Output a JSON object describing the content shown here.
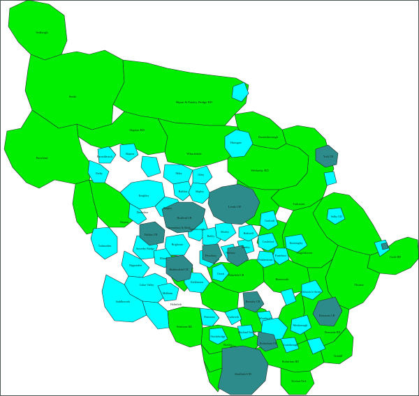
{
  "colors": {
    "green": "#00ee00",
    "cyan": "#00ffff",
    "teal": "#2e8b8b",
    "border": "#1e2a2a"
  },
  "labels": {
    "sedbergh": "Sedbergh",
    "settle": "Settle",
    "ripon_pateley": "Ripon & Pateley Bridge RD",
    "knaresborough": "Knaresborough",
    "skipton_rd": "Skipton RD",
    "bowland": "Bowland",
    "barnoldswick": "Barnoldswick",
    "earby": "Earby",
    "skipton": "Skipton",
    "harrogate": "Harrogate",
    "wharfedale": "Wharfedale",
    "wetherby_rd": "Wetherby RD",
    "tadcaster": "Tadcaster",
    "york_cb": "York CB",
    "ilkley": "Ilkley",
    "otley": "Otley",
    "keighley": "Keighley",
    "bingley": "Bingley",
    "baildon": "Baildon",
    "shipley": "Shipley",
    "leeds_cb": "Leeds CB",
    "bradford_cb": "Bradford CB",
    "queensbury": "Queensbury & Shelf",
    "denholme": "Denholme",
    "hepton": "Hepton",
    "halifax_cb": "Halifax CB",
    "todmorden": "Todmorden",
    "sowerby": "Sowerby Bridge",
    "brighouse": "Brighouse",
    "spenborough": "Spenborough",
    "batley": "Batley",
    "morley": "Morley",
    "rothwell": "Rothwell",
    "garforth": "Garforth",
    "selby_ud": "Selby UD",
    "goole_rd": "Goole RD",
    "osgoldcross": "Osgoldcross",
    "thorne": "Thorne",
    "castleford": "Castleford",
    "knottingley": "Knottingley",
    "pontefract": "Pontefract",
    "featherstone": "Featherstone",
    "wakefield_cb": "Wakefield CB",
    "dewsbury": "Dewsbury",
    "ossett": "Ossett",
    "elland": "Elland",
    "ripponden": "Ripponden",
    "colne_valley": "Colne Valley",
    "huddersfield_cb": "Huddersfield CB",
    "kirkburton": "Kirkburton",
    "holmfirth": "Holmfirth",
    "meltham": "Meltham",
    "saddleworth": "Saddleworth",
    "hemsworth": "Hemsworth",
    "barnsley_cb": "Barnsley CB",
    "penistone": "Penistone",
    "stocksbridge": "Stocksbridge",
    "penistone_rd": "Penistone RD",
    "wortley": "Wortley",
    "cudworth": "Cudworth",
    "hoyland": "Hoyland Nether",
    "wombwell": "Wombwell",
    "mexborough": "Mexborough",
    "doncaster_cb": "Doncaster CB",
    "doncaster_rd": "Doncaster RD",
    "conisbrough": "Conisbrough",
    "adwick": "Adwick le Street",
    "tickhill": "Tickhill",
    "rotherham_rd": "Rotherham RD",
    "kiveton": "Kiveton Park",
    "sheffield_cb": "Sheffield CB",
    "rotherham_cb": "Rotherham CB",
    "horbury": "Horbury",
    "stanley": "Stanley"
  }
}
